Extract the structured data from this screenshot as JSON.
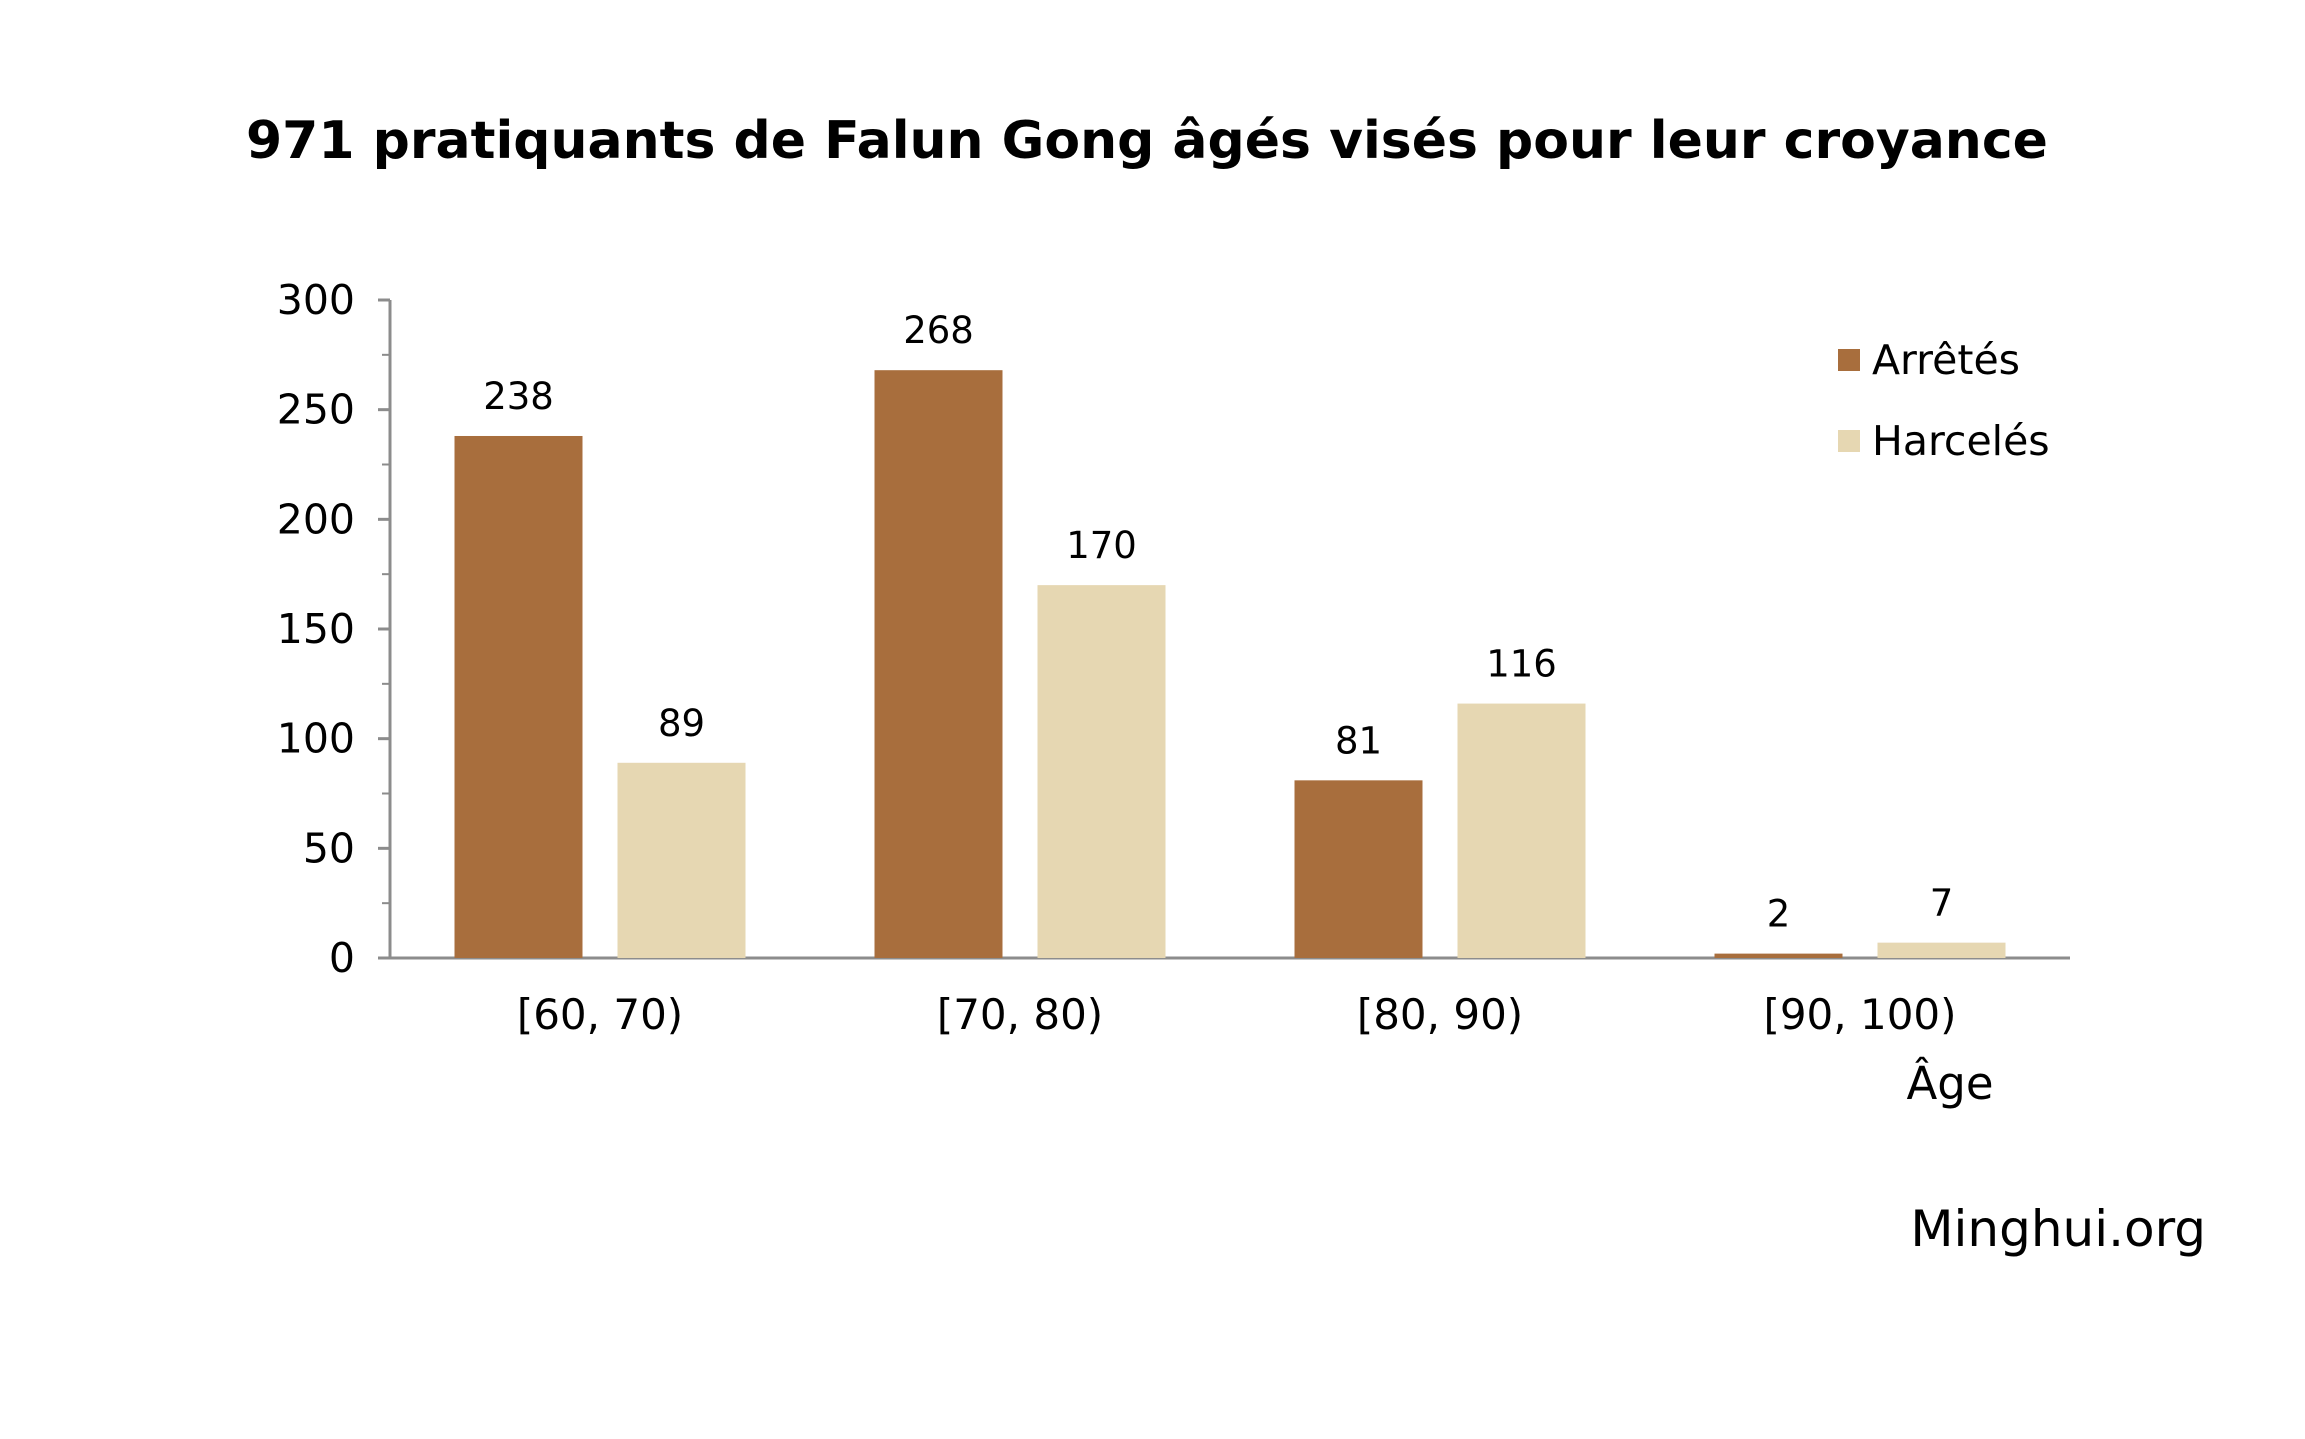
{
  "chart_data": {
    "type": "bar",
    "title": "971 pratiquants de Falun Gong âgés visés pour leur croyance",
    "xlabel": "Âge",
    "ylabel": "",
    "ylim": [
      0,
      300
    ],
    "yticks": [
      0,
      50,
      100,
      150,
      200,
      250,
      300
    ],
    "categories": [
      "[60, 70)",
      "[70, 80)",
      "[80, 90)",
      "[90, 100)"
    ],
    "series": [
      {
        "name": "Arrêtés",
        "color": "#A86E3D",
        "values": [
          238,
          268,
          81,
          2
        ]
      },
      {
        "name": "Harcelés",
        "color": "#E6D7B2",
        "values": [
          89,
          170,
          116,
          7
        ]
      }
    ],
    "data_labels": true,
    "grid": false,
    "legend_position": "top-right"
  },
  "source": "Minghui.org"
}
